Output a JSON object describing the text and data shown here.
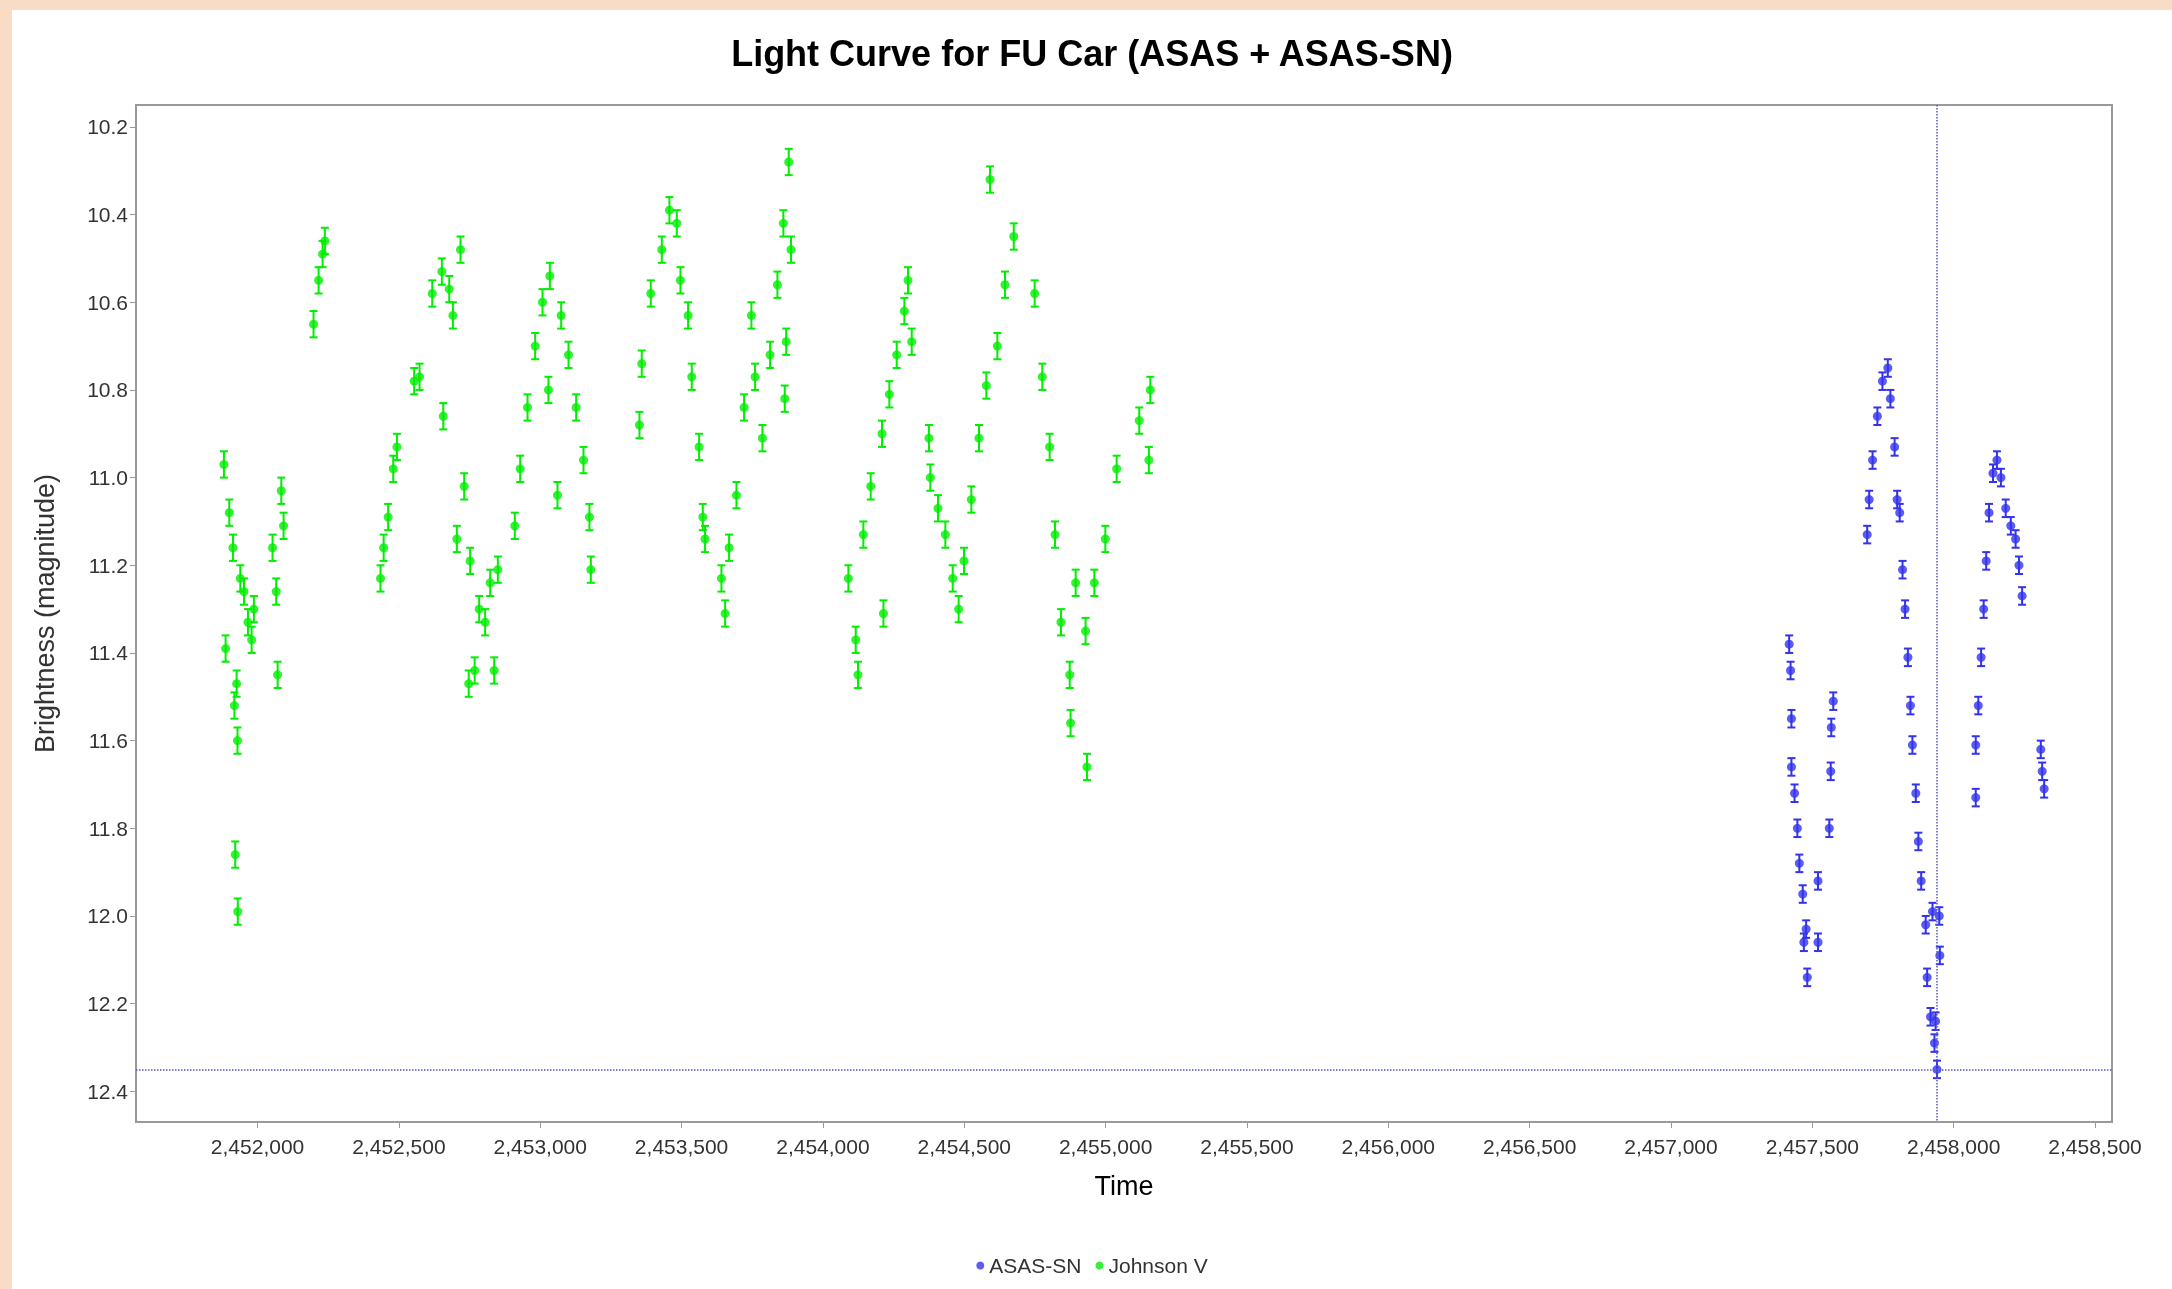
{
  "chart_data": {
    "type": "scatter",
    "title": "Light Curve for FU Car (ASAS + ASAS-SN)",
    "xlabel": "Time",
    "ylabel": "Brightness (magnitude)",
    "xlim": [
      2451570,
      2458560
    ],
    "xticks": [
      {
        "value": 2452000,
        "label": "2,452,000"
      },
      {
        "value": 2452500,
        "label": "2,452,500"
      },
      {
        "value": 2453000,
        "label": "2,453,000"
      },
      {
        "value": 2453500,
        "label": "2,453,500"
      },
      {
        "value": 2454000,
        "label": "2,454,000"
      },
      {
        "value": 2454500,
        "label": "2,454,500"
      },
      {
        "value": 2455000,
        "label": "2,455,000"
      },
      {
        "value": 2455500,
        "label": "2,455,500"
      },
      {
        "value": 2456000,
        "label": "2,456,000"
      },
      {
        "value": 2456500,
        "label": "2,456,500"
      },
      {
        "value": 2457000,
        "label": "2,457,000"
      },
      {
        "value": 2457500,
        "label": "2,457,500"
      },
      {
        "value": 2458000,
        "label": "2,458,000"
      },
      {
        "value": 2458500,
        "label": "2,458,500"
      }
    ],
    "ylim": [
      12.47,
      10.15
    ],
    "yticks": [
      {
        "value": 10.2,
        "label": "10.2"
      },
      {
        "value": 10.4,
        "label": "10.4"
      },
      {
        "value": 10.6,
        "label": "10.6"
      },
      {
        "value": 10.8,
        "label": "10.8"
      },
      {
        "value": 11.0,
        "label": "11.0"
      },
      {
        "value": 11.2,
        "label": "11.2"
      },
      {
        "value": 11.4,
        "label": "11.4"
      },
      {
        "value": 11.6,
        "label": "11.6"
      },
      {
        "value": 11.8,
        "label": "11.8"
      },
      {
        "value": 12.0,
        "label": "12.0"
      },
      {
        "value": 12.2,
        "label": "12.2"
      },
      {
        "value": 12.4,
        "label": "12.4"
      }
    ],
    "grid": false,
    "legend": "bottom",
    "marker": "circle",
    "ref_lines": [
      {
        "axis": "y",
        "value": 12.35,
        "color": "#5555cc",
        "line_style": "dotted"
      },
      {
        "axis": "x",
        "value": 2457940,
        "color": "#5555cc",
        "line_style": "dotted"
      }
    ],
    "series": [
      {
        "name": "ASAS-SN",
        "color": "#3333ee",
        "x": [
          2457418,
          2457423,
          2457426,
          2457426,
          2457437,
          2457447,
          2457454,
          2457466,
          2457470,
          2457478,
          2457482,
          2457520,
          2457520,
          2457560,
          2457565,
          2457567,
          2457574,
          2457694,
          2457701,
          2457713,
          2457730,
          2457748,
          2457767,
          2457776,
          2457791,
          2457800,
          2457809,
          2457819,
          2457828,
          2457838,
          2457847,
          2457854,
          2457866,
          2457875,
          2457885,
          2457901,
          2457925,
          2457949,
          2457951,
          2457906,
          2457918,
          2457936,
          2457932,
          2457941,
          2458078,
          2458078,
          2458087,
          2458097,
          2458106,
          2458115,
          2458125,
          2458139,
          2458153,
          2458167,
          2458184,
          2458202,
          2458219,
          2458231,
          2458242,
          2458308,
          2458313,
          2458320
        ],
        "values": [
          11.38,
          11.44,
          11.55,
          11.66,
          11.72,
          11.8,
          11.88,
          11.95,
          12.06,
          12.03,
          12.14,
          11.92,
          12.06,
          11.8,
          11.67,
          11.57,
          11.51,
          11.13,
          11.05,
          10.96,
          10.86,
          10.78,
          10.75,
          10.82,
          10.93,
          11.05,
          11.08,
          11.21,
          11.3,
          11.41,
          11.52,
          11.61,
          11.72,
          11.83,
          11.92,
          12.02,
          11.99,
          12.0,
          12.09,
          12.14,
          12.23,
          12.24,
          12.29,
          12.35,
          11.73,
          11.61,
          11.52,
          11.41,
          11.3,
          11.19,
          11.08,
          10.99,
          10.96,
          11.0,
          11.07,
          11.11,
          11.14,
          11.2,
          11.27,
          11.62,
          11.67,
          11.71
        ],
        "errors": [
          0.02,
          0.02,
          0.02,
          0.02,
          0.02,
          0.02,
          0.02,
          0.02,
          0.02,
          0.02,
          0.02,
          0.02,
          0.02,
          0.02,
          0.02,
          0.02,
          0.02,
          0.02,
          0.02,
          0.02,
          0.02,
          0.02,
          0.02,
          0.02,
          0.02,
          0.02,
          0.02,
          0.02,
          0.02,
          0.02,
          0.02,
          0.02,
          0.02,
          0.02,
          0.02,
          0.02,
          0.02,
          0.02,
          0.02,
          0.02,
          0.02,
          0.02,
          0.02,
          0.02,
          0.02,
          0.02,
          0.02,
          0.02,
          0.02,
          0.02,
          0.02,
          0.02,
          0.02,
          0.02,
          0.02,
          0.02,
          0.02,
          0.02,
          0.02,
          0.02,
          0.02,
          0.02
        ]
      },
      {
        "name": "Johnson V",
        "color": "#00ee00",
        "x": [
          2451881,
          2451887,
          2451900,
          2451913,
          2451918,
          2451926,
          2451929,
          2451921,
          2451930,
          2451939,
          2451952,
          2451966,
          2451979,
          2451987,
          2452053,
          2452066,
          2452071,
          2452084,
          2452092,
          2452198,
          2452216,
          2452230,
          2452238,
          2452435,
          2452446,
          2452462,
          2452480,
          2452493,
          2452554,
          2452573,
          2452657,
          2452618,
          2452652,
          2452678,
          2452691,
          2452718,
          2452705,
          2452731,
          2452752,
          2452747,
          2452768,
          2452784,
          2452805,
          2452823,
          2452837,
          2452850,
          2452910,
          2452929,
          2452955,
          2452982,
          2453008,
          2453034,
          2453029,
          2453061,
          2453074,
          2453100,
          2453127,
          2453153,
          2453174,
          2453179,
          2453351,
          2453359,
          2453391,
          2453430,
          2453457,
          2453483,
          2453496,
          2453523,
          2453536,
          2453562,
          2453575,
          2453583,
          2453641,
          2453654,
          2453668,
          2453694,
          2453721,
          2453747,
          2453760,
          2453786,
          2453813,
          2453839,
          2453865,
          2453860,
          2453879,
          2453887,
          2453870,
          2454090,
          2454124,
          2454116,
          2454143,
          2454169,
          2454209,
          2454214,
          2454235,
          2454261,
          2454288,
          2454301,
          2454314,
          2454375,
          2454380,
          2454407,
          2454433,
          2454459,
          2454480,
          2454499,
          2454525,
          2454552,
          2454578,
          2454591,
          2454617,
          2454644,
          2454675,
          2454749,
          2454776,
          2454802,
          2454821,
          2454842,
          2454873,
          2454876,
          2454894,
          2454934,
          2454929,
          2454960,
          2454999,
          2455039,
          2455119,
          2455153,
          2455158
        ],
        "values": [
          10.97,
          11.39,
          11.08,
          11.16,
          11.52,
          11.47,
          11.6,
          11.86,
          11.99,
          11.23,
          11.26,
          11.33,
          11.37,
          11.3,
          11.16,
          11.26,
          11.45,
          11.03,
          11.11,
          10.65,
          10.55,
          10.49,
          10.46,
          11.23,
          11.16,
          11.09,
          10.98,
          10.93,
          10.78,
          10.77,
          10.86,
          10.58,
          10.53,
          10.57,
          10.63,
          10.48,
          11.14,
          11.02,
          11.19,
          11.47,
          11.44,
          11.3,
          11.33,
          11.24,
          11.44,
          11.21,
          11.11,
          10.98,
          10.84,
          10.7,
          10.6,
          10.54,
          10.8,
          11.04,
          10.63,
          10.72,
          10.84,
          10.96,
          11.09,
          11.21,
          10.88,
          10.74,
          10.58,
          10.48,
          10.39,
          10.42,
          10.55,
          10.63,
          10.77,
          10.93,
          11.09,
          11.14,
          11.23,
          11.31,
          11.16,
          11.04,
          10.84,
          10.63,
          10.77,
          10.91,
          10.72,
          10.56,
          10.82,
          10.42,
          10.28,
          10.48,
          10.69,
          11.23,
          11.45,
          11.37,
          11.13,
          11.02,
          10.9,
          11.31,
          10.81,
          10.72,
          10.62,
          10.55,
          10.69,
          10.91,
          11.0,
          11.07,
          11.13,
          11.23,
          11.3,
          11.19,
          11.05,
          10.91,
          10.79,
          10.32,
          10.7,
          10.56,
          10.45,
          10.58,
          10.77,
          10.93,
          11.13,
          11.33,
          11.45,
          11.56,
          11.24,
          11.66,
          11.35,
          11.24,
          11.14,
          10.98,
          10.87,
          10.96,
          10.8
        ],
        "errors": [
          0.03,
          0.03,
          0.03,
          0.03,
          0.03,
          0.03,
          0.03,
          0.03,
          0.03,
          0.03,
          0.03,
          0.03,
          0.03,
          0.03,
          0.03,
          0.03,
          0.03,
          0.03,
          0.03,
          0.03,
          0.03,
          0.03,
          0.03,
          0.03,
          0.03,
          0.03,
          0.03,
          0.03,
          0.03,
          0.03,
          0.03,
          0.03,
          0.03,
          0.03,
          0.03,
          0.03,
          0.03,
          0.03,
          0.03,
          0.03,
          0.03,
          0.03,
          0.03,
          0.03,
          0.03,
          0.03,
          0.03,
          0.03,
          0.03,
          0.03,
          0.03,
          0.03,
          0.03,
          0.03,
          0.03,
          0.03,
          0.03,
          0.03,
          0.03,
          0.03,
          0.03,
          0.03,
          0.03,
          0.03,
          0.03,
          0.03,
          0.03,
          0.03,
          0.03,
          0.03,
          0.03,
          0.03,
          0.03,
          0.03,
          0.03,
          0.03,
          0.03,
          0.03,
          0.03,
          0.03,
          0.03,
          0.03,
          0.03,
          0.03,
          0.03,
          0.03,
          0.03,
          0.03,
          0.03,
          0.03,
          0.03,
          0.03,
          0.03,
          0.03,
          0.03,
          0.03,
          0.03,
          0.03,
          0.03,
          0.03,
          0.03,
          0.03,
          0.03,
          0.03,
          0.03,
          0.03,
          0.03,
          0.03,
          0.03,
          0.03,
          0.03,
          0.03,
          0.03,
          0.03,
          0.03,
          0.03,
          0.03,
          0.03,
          0.03,
          0.03,
          0.03,
          0.03,
          0.03,
          0.03,
          0.03,
          0.03,
          0.03,
          0.03,
          0.03
        ]
      }
    ]
  }
}
